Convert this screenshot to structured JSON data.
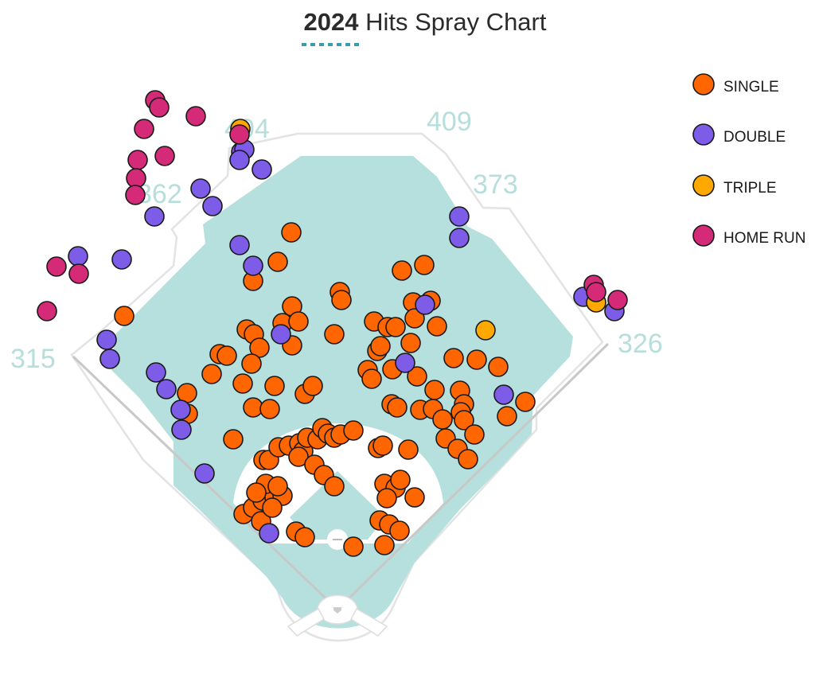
{
  "colors": {
    "field": "#b5e0dd",
    "wall": "#e3e3e3",
    "infield_dirt": "#ffffff",
    "foul_line": "#c8c8c8",
    "title_underline": "#3a9ea6",
    "distance_label": "#b6dedb",
    "single": "#ff6600",
    "double": "#7d5ce8",
    "triple": "#ffa800",
    "home_run": "#d42a78"
  },
  "chart_data": {
    "type": "scatter",
    "title_year": "2024",
    "title_rest": " Hits Spray Chart",
    "distance_markers": [
      "315",
      "362",
      "404",
      "409",
      "373",
      "326"
    ],
    "legend": [
      {
        "key": "single",
        "label": "SINGLE"
      },
      {
        "key": "double",
        "label": "DOUBLE"
      },
      {
        "key": "triple",
        "label": "TRIPLE"
      },
      {
        "key": "home_run",
        "label": "HOME RUN"
      }
    ],
    "hits": {
      "single": [
        [
          366,
          292
        ],
        [
          349,
          329
        ],
        [
          318,
          353
        ],
        [
          427,
          367
        ],
        [
          429,
          377
        ],
        [
          367,
          385
        ],
        [
          355,
          406
        ],
        [
          375,
          404
        ],
        [
          310,
          414
        ],
        [
          319,
          420
        ],
        [
          326,
          437
        ],
        [
          367,
          434
        ],
        [
          420,
          420
        ],
        [
          276,
          445
        ],
        [
          285,
          447
        ],
        [
          316,
          457
        ],
        [
          266,
          470
        ],
        [
          305,
          482
        ],
        [
          345,
          485
        ],
        [
          383,
          495
        ],
        [
          393,
          485
        ],
        [
          235,
          494
        ],
        [
          236,
          520
        ],
        [
          318,
          512
        ],
        [
          339,
          514
        ],
        [
          505,
          340
        ],
        [
          533,
          333
        ],
        [
          519,
          380
        ],
        [
          541,
          378
        ],
        [
          521,
          400
        ],
        [
          470,
          404
        ],
        [
          487,
          411
        ],
        [
          497,
          411
        ],
        [
          549,
          410
        ],
        [
          516,
          431
        ],
        [
          474,
          441
        ],
        [
          478,
          435
        ],
        [
          462,
          465
        ],
        [
          467,
          476
        ],
        [
          493,
          464
        ],
        [
          524,
          473
        ],
        [
          546,
          490
        ],
        [
          492,
          508
        ],
        [
          499,
          512
        ],
        [
          528,
          515
        ],
        [
          544,
          514
        ],
        [
          570,
          450
        ],
        [
          599,
          452
        ],
        [
          626,
          461
        ],
        [
          578,
          491
        ],
        [
          583,
          508
        ],
        [
          579,
          518
        ],
        [
          556,
          527
        ],
        [
          583,
          528
        ],
        [
          596,
          546
        ],
        [
          560,
          551
        ],
        [
          575,
          564
        ],
        [
          588,
          577
        ],
        [
          637,
          523
        ],
        [
          660,
          505
        ],
        [
          156,
          397
        ],
        [
          293,
          552
        ],
        [
          331,
          578
        ],
        [
          338,
          578
        ],
        [
          350,
          562
        ],
        [
          363,
          560
        ],
        [
          376,
          557
        ],
        [
          381,
          567
        ],
        [
          386,
          550
        ],
        [
          399,
          552
        ],
        [
          405,
          538
        ],
        [
          412,
          545
        ],
        [
          420,
          550
        ],
        [
          428,
          546
        ],
        [
          444,
          541
        ],
        [
          375,
          574
        ],
        [
          395,
          584
        ],
        [
          407,
          597
        ],
        [
          420,
          611
        ],
        [
          306,
          646
        ],
        [
          318,
          638
        ],
        [
          330,
          629
        ],
        [
          345,
          625
        ],
        [
          355,
          623
        ],
        [
          328,
          655
        ],
        [
          334,
          608
        ],
        [
          349,
          611
        ],
        [
          372,
          668
        ],
        [
          383,
          675
        ],
        [
          444,
          687
        ],
        [
          483,
          685
        ],
        [
          477,
          654
        ],
        [
          489,
          659
        ],
        [
          502,
          667
        ],
        [
          475,
          563
        ],
        [
          481,
          560
        ],
        [
          513,
          565
        ],
        [
          483,
          608
        ],
        [
          497,
          613
        ],
        [
          503,
          603
        ],
        [
          521,
          625
        ],
        [
          486,
          626
        ],
        [
          322,
          619
        ],
        [
          342,
          638
        ]
      ],
      "double": [
        [
          303,
          191
        ],
        [
          307,
          188
        ],
        [
          301,
          201
        ],
        [
          329,
          213
        ],
        [
          252,
          237
        ],
        [
          267,
          259
        ],
        [
          194,
          272
        ],
        [
          301,
          308
        ],
        [
          318,
          334
        ],
        [
          98,
          322
        ],
        [
          153,
          326
        ],
        [
          134,
          427
        ],
        [
          138,
          451
        ],
        [
          196,
          468
        ],
        [
          209,
          489
        ],
        [
          227,
          515
        ],
        [
          228,
          540
        ],
        [
          257,
          595
        ],
        [
          338,
          670
        ],
        [
          353,
          420
        ],
        [
          509,
          456
        ],
        [
          534,
          383
        ],
        [
          577,
          272
        ],
        [
          577,
          299
        ],
        [
          633,
          496
        ],
        [
          733,
          373
        ],
        [
          772,
          391
        ]
      ],
      "triple": [
        [
          302,
          162
        ],
        [
          610,
          415
        ],
        [
          749,
          380
        ]
      ],
      "home_run": [
        [
          195,
          126
        ],
        [
          200,
          135
        ],
        [
          181,
          162
        ],
        [
          246,
          146
        ],
        [
          207,
          196
        ],
        [
          173,
          201
        ],
        [
          171,
          224
        ],
        [
          170,
          245
        ],
        [
          301,
          169
        ],
        [
          71,
          335
        ],
        [
          99,
          344
        ],
        [
          59,
          391
        ],
        [
          746,
          358
        ],
        [
          749,
          367
        ],
        [
          776,
          377
        ]
      ]
    }
  }
}
